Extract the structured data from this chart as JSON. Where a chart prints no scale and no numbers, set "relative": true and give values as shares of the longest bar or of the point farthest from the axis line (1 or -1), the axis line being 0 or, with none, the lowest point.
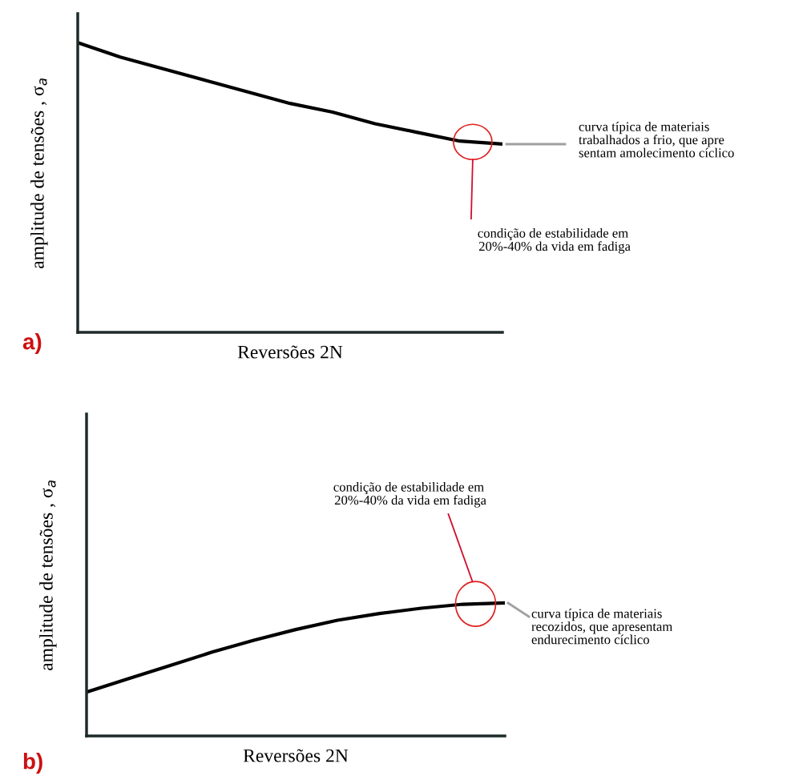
{
  "chart_data": [
    {
      "type": "line",
      "relative": true,
      "xlabel": "Reversões 2N",
      "ylabel": "amplitude de tensões , σ$_{a}$",
      "categories": [
        null,
        null,
        null,
        null,
        null,
        null,
        null,
        null,
        null,
        null,
        null
      ],
      "series": [
        {
          "color": "#000000",
          "values": [
            1,
            0.95,
            0.91,
            0.87,
            0.83,
            0.79,
            0.76,
            0.72,
            0.69,
            0.66,
            0.65
          ]
        }
      ],
      "annotations": [
        "curva típica de materiais\ntrabalhados a frio, que apre\nsentam amolecimento cíclico",
        "condição de estabilidade em\n 20%-40% da vida em fadiga",
        "a)"
      ]
    },
    {
      "type": "line",
      "relative": true,
      "xlabel": "Reversões 2N",
      "ylabel": "amplitude de tensões , σ$_{a}$",
      "categories": [
        null,
        null,
        null,
        null,
        null,
        null,
        null,
        null,
        null,
        null,
        null
      ],
      "series": [
        {
          "color": "#000000",
          "values": [
            0.33,
            0.43,
            0.53,
            0.63,
            0.72,
            0.8,
            0.87,
            0.92,
            0.96,
            0.99,
            1
          ]
        }
      ],
      "annotations": [
        "curva típica de materiais\nrecozidos, que apresentam\nendurecimento cíclico",
        "condição de estabilidade em\n 20%-40% da vida em fadiga",
        "b)"
      ]
    }
  ]
}
